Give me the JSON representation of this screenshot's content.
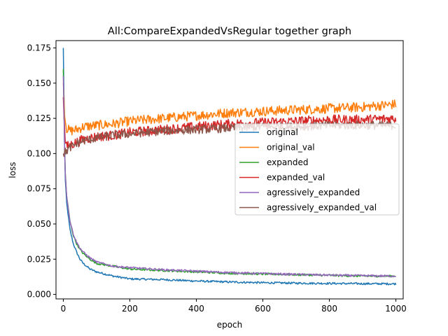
{
  "chart_data": {
    "type": "line",
    "title": "All:CompareExpandedVsRegular together graph",
    "xlabel": "epoch",
    "ylabel": "loss",
    "xlim": [
      -22,
      1022
    ],
    "ylim": [
      -0.0032,
      0.1802
    ],
    "xticks": [
      0,
      200,
      400,
      600,
      800,
      1000
    ],
    "yticks": [
      0.0,
      0.025,
      0.05,
      0.075,
      0.1,
      0.125,
      0.15,
      0.175
    ],
    "ytick_labels": [
      "0.000",
      "0.025",
      "0.050",
      "0.075",
      "0.100",
      "0.125",
      "0.150",
      "0.175"
    ],
    "grid": false,
    "legend_position": "center-right",
    "series": [
      {
        "name": "original",
        "color": "#1f77b4",
        "noise": 0.0007,
        "x": [
          0,
          5,
          10,
          20,
          30,
          40,
          50,
          60,
          80,
          100,
          150,
          200,
          300,
          400,
          500,
          600,
          700,
          800,
          900,
          1000
        ],
        "y": [
          0.175,
          0.085,
          0.065,
          0.046,
          0.036,
          0.03,
          0.025,
          0.022,
          0.018,
          0.016,
          0.013,
          0.011,
          0.0105,
          0.0095,
          0.0088,
          0.0083,
          0.008,
          0.0078,
          0.0076,
          0.0075
        ]
      },
      {
        "name": "original_val",
        "color": "#ff7f0e",
        "noise": 0.0035,
        "x": [
          0,
          5,
          10,
          20,
          40,
          60,
          100,
          150,
          200,
          300,
          400,
          500,
          600,
          700,
          800,
          900,
          1000
        ],
        "y": [
          0.15,
          0.125,
          0.118,
          0.116,
          0.117,
          0.119,
          0.12,
          0.121,
          0.123,
          0.125,
          0.127,
          0.129,
          0.13,
          0.131,
          0.132,
          0.133,
          0.135
        ]
      },
      {
        "name": "expanded",
        "color": "#2ca02c",
        "noise": 0.0007,
        "x": [
          0,
          5,
          10,
          20,
          30,
          40,
          50,
          60,
          80,
          100,
          150,
          200,
          300,
          400,
          500,
          600,
          700,
          800,
          900,
          1000
        ],
        "y": [
          0.16,
          0.09,
          0.07,
          0.052,
          0.042,
          0.036,
          0.032,
          0.029,
          0.025,
          0.022,
          0.02,
          0.018,
          0.017,
          0.016,
          0.015,
          0.0145,
          0.014,
          0.0135,
          0.013,
          0.013
        ]
      },
      {
        "name": "expanded_val",
        "color": "#d62728",
        "noise": 0.0035,
        "x": [
          0,
          5,
          10,
          20,
          40,
          60,
          100,
          150,
          200,
          300,
          400,
          500,
          600,
          700,
          800,
          900,
          1000
        ],
        "y": [
          0.14,
          0.11,
          0.105,
          0.106,
          0.108,
          0.11,
          0.112,
          0.113,
          0.115,
          0.117,
          0.119,
          0.121,
          0.122,
          0.123,
          0.124,
          0.124,
          0.125
        ]
      },
      {
        "name": "agressively_expanded",
        "color": "#9467bd",
        "noise": 0.0007,
        "x": [
          0,
          5,
          10,
          20,
          30,
          40,
          50,
          60,
          80,
          100,
          150,
          200,
          300,
          400,
          500,
          600,
          700,
          800,
          900,
          1000
        ],
        "y": [
          0.155,
          0.09,
          0.07,
          0.052,
          0.043,
          0.037,
          0.033,
          0.03,
          0.026,
          0.023,
          0.02,
          0.019,
          0.0175,
          0.0165,
          0.0155,
          0.0148,
          0.0142,
          0.0137,
          0.0133,
          0.013
        ]
      },
      {
        "name": "agressively_expanded_val",
        "color": "#8c564b",
        "noise": 0.003,
        "x": [
          0,
          5,
          10,
          20,
          40,
          60,
          100,
          150,
          200,
          300,
          400,
          500,
          600,
          700,
          800,
          900,
          1000
        ],
        "y": [
          0.1,
          0.101,
          0.102,
          0.104,
          0.107,
          0.109,
          0.111,
          0.113,
          0.114,
          0.116,
          0.117,
          0.118,
          0.119,
          0.119,
          0.12,
          0.12,
          0.12
        ]
      }
    ]
  }
}
